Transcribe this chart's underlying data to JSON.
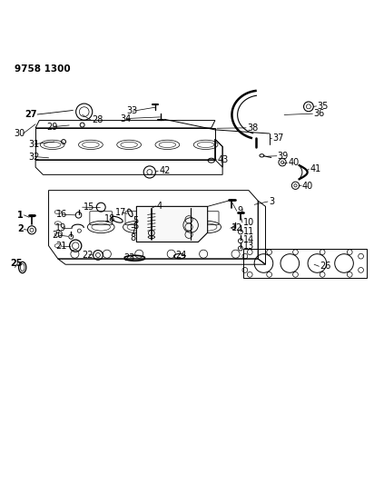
{
  "title": "9758 1300",
  "bg_color": "#ffffff",
  "line_color": "#000000",
  "title_fontsize": 9,
  "label_fontsize": 7,
  "bold_fontsize": 7.5
}
